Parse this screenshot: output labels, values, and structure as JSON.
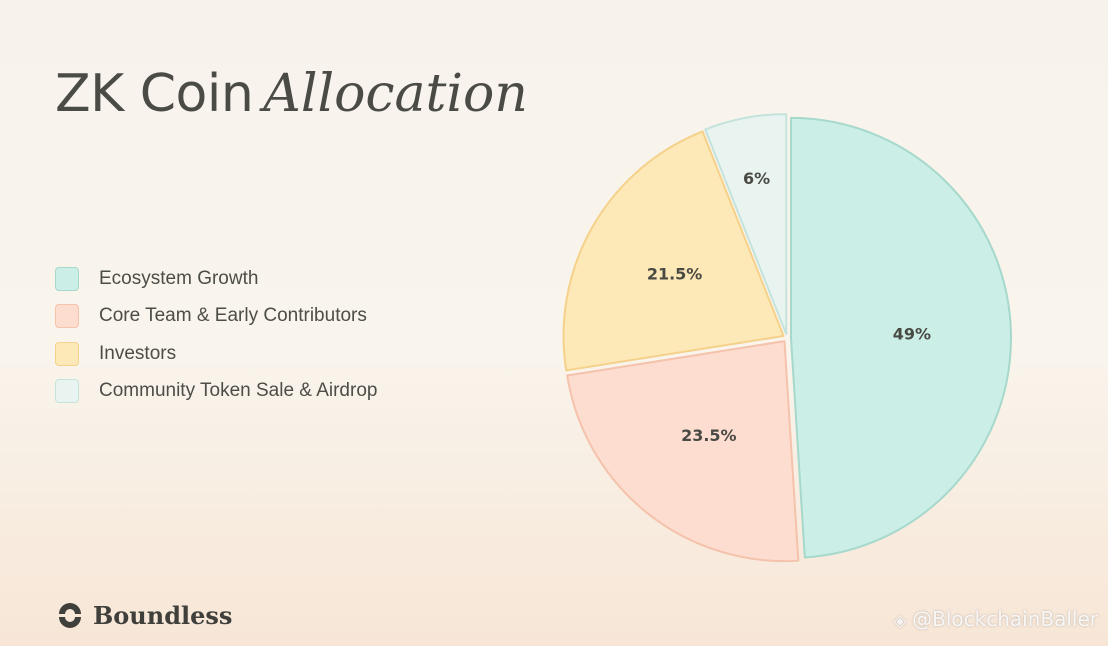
{
  "title": {
    "part1": "ZK Coin",
    "part2": "Allocation"
  },
  "chart_data": {
    "type": "pie",
    "title": "ZK Coin Allocation",
    "categories": [
      "Ecosystem Growth",
      "Core Team & Early Contributors",
      "Investors",
      "Community Token Sale & Airdrop"
    ],
    "values": [
      49,
      23.5,
      21.5,
      6
    ],
    "labels": [
      "49%",
      "23.5%",
      "21.5%",
      "6%"
    ],
    "fill_colors": [
      "#cbeee6",
      "#fdddd0",
      "#fde8b8",
      "#e9f4f1"
    ],
    "stroke_colors": [
      "#a7d8cc",
      "#f5c2ab",
      "#f5d18a",
      "#c4e3dc"
    ],
    "start_angle_deg": -90,
    "direction": "clockwise",
    "legend_position": "left"
  },
  "logo": {
    "text": "Boundless"
  },
  "watermark": {
    "icon": "binance-icon",
    "text": "@BlockchainBaller"
  }
}
